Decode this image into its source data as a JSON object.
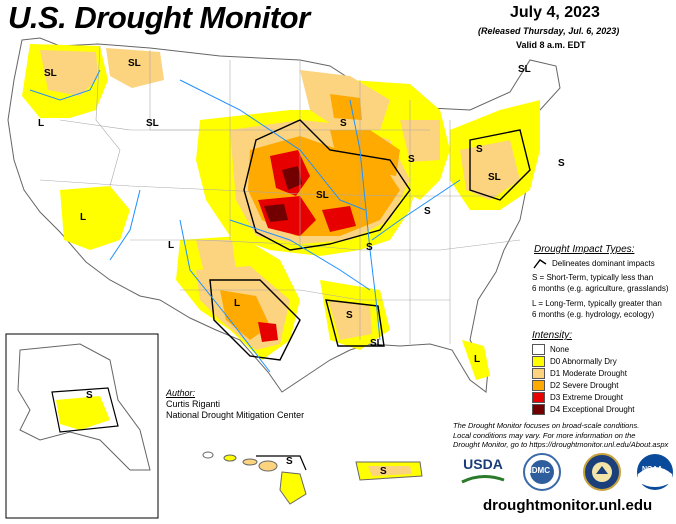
{
  "header": {
    "title": "U.S. Drought Monitor",
    "date": "July 4, 2023",
    "released": "(Released Thursday, Jul. 6, 2023)",
    "valid": "Valid 8 a.m. EDT"
  },
  "impact_types": {
    "heading": "Drought Impact Types:",
    "delineates": "Delineates dominant impacts",
    "short_term": [
      "S = Short-Term, typically less than",
      "6 months (e.g. agriculture, grasslands)"
    ],
    "long_term": [
      "L = Long-Term, typically greater than",
      "6 months (e.g. hydrology, ecology)"
    ]
  },
  "intensity": {
    "heading": "Intensity:",
    "levels": [
      {
        "label": "None",
        "color": "#ffffff"
      },
      {
        "label": "D0 Abnormally Dry",
        "color": "#ffff00"
      },
      {
        "label": "D1 Moderate Drought",
        "color": "#fcd37f"
      },
      {
        "label": "D2 Severe Drought",
        "color": "#ffaa00"
      },
      {
        "label": "D3 Extreme Drought",
        "color": "#e60000"
      },
      {
        "label": "D4 Exceptional Drought",
        "color": "#730000"
      }
    ]
  },
  "author": {
    "heading": "Author:",
    "name": "Curtis Riganti",
    "org": "National Drought Mitigation Center"
  },
  "footnote": [
    "The Drought Monitor focuses on broad-scale conditions.",
    "Local conditions may vary. For more information on the",
    "Drought Monitor, go to https://droughtmonitor.unl.edu/About.aspx"
  ],
  "map_labels": {
    "S": "S",
    "L": "L",
    "SL": "SL"
  },
  "logos": {
    "usda": "USDA",
    "ndmc": "NDMC",
    "noaa": "NOAA"
  },
  "url": "droughtmonitor.unl.edu",
  "colors": {
    "d0": "#ffff00",
    "d1": "#fcd37f",
    "d2": "#ffaa00",
    "d3": "#e60000",
    "d4": "#730000",
    "water": "#1e90ff",
    "border": "#999999"
  }
}
